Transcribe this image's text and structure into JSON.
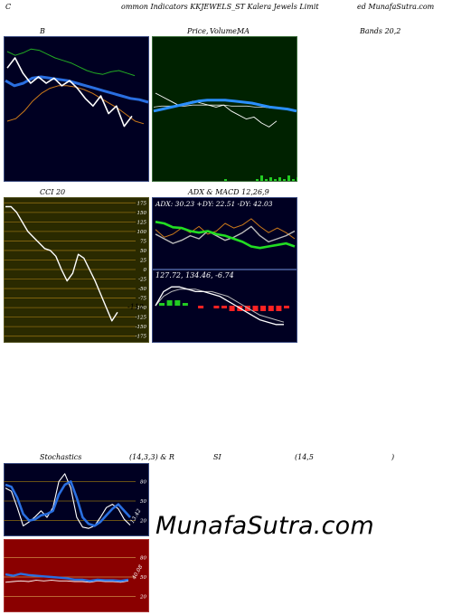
{
  "header": {
    "left": "C",
    "center": "ommon  Indicators KKJEWELS_ST Kalera  Jewels Limit",
    "right": "ed MunafaSutra.com"
  },
  "titles": {
    "bb": "B",
    "price": "Price,",
    "volume": "Volume,",
    "ma": "MA",
    "bands": "Bands 20,2",
    "cci": "CCI 20",
    "adx": "ADX  & MACD 12,26,9",
    "stoch": "Stochastics",
    "stoch_params": "(14,3,3) & R",
    "rsi": "SI",
    "rsi_params": "(14,5",
    "rsi_close": ")"
  },
  "adx_text": "ADX: 30.23  +DY: 22.51 -DY: 42.03",
  "macd_text": "127.72,   134.46,   -6.74",
  "cci_current": "-112",
  "stoch_current": "13.42",
  "rsi_current": "40.08",
  "watermark": "MunafaSutra.com",
  "chart_data": [
    {
      "type": "line",
      "panel": "bollinger",
      "series": [
        {
          "role": "upper-band",
          "values": [
            95,
            92,
            94,
            97,
            96,
            93,
            90,
            88,
            86,
            83,
            80,
            78,
            77,
            79,
            80,
            78,
            76
          ]
        },
        {
          "role": "middle-band",
          "values": [
            72,
            68,
            70,
            74,
            75,
            74,
            73,
            72,
            70,
            68,
            66,
            64,
            62,
            60,
            58,
            57,
            55
          ]
        },
        {
          "role": "moving-average",
          "values": [
            40,
            42,
            48,
            56,
            62,
            66,
            68,
            68,
            67,
            65,
            62,
            58,
            54,
            50,
            45,
            40,
            38
          ]
        },
        {
          "role": "price",
          "values": [
            82,
            90,
            78,
            70,
            75,
            70,
            74,
            68,
            72,
            66,
            58,
            52,
            60,
            46,
            52,
            36,
            44
          ]
        }
      ]
    },
    {
      "type": "line",
      "panel": "price-volume-ma",
      "series": [
        {
          "role": "price",
          "values": [
            70,
            66,
            62,
            58,
            60,
            62,
            60,
            58,
            56,
            58,
            52,
            48,
            44,
            46,
            40,
            36,
            42
          ]
        },
        {
          "role": "moving-average",
          "values": [
            52,
            54,
            56,
            58,
            60,
            62,
            63,
            63,
            63,
            62,
            61,
            60,
            58,
            56,
            55,
            54,
            52
          ]
        },
        {
          "role": "moving-average-2",
          "values": [
            56,
            57,
            57,
            57,
            57,
            58,
            58,
            58,
            58,
            58,
            57,
            57,
            57,
            56,
            56,
            55,
            55
          ]
        }
      ],
      "volume": [
        1,
        0,
        0,
        0,
        0,
        0,
        0,
        1,
        3,
        1,
        2,
        1,
        2,
        1,
        3,
        1,
        2
      ]
    },
    {
      "type": "line",
      "panel": "cci",
      "y_ticks": [
        175,
        150,
        125,
        100,
        75,
        50,
        25,
        0,
        -25,
        -50,
        -75,
        -100,
        -125,
        -150,
        -175
      ],
      "ylim": [
        -190,
        190
      ],
      "values": [
        165,
        165,
        150,
        125,
        100,
        85,
        70,
        55,
        50,
        35,
        0,
        -30,
        -10,
        40,
        30,
        0,
        -30,
        -65,
        -100,
        -135,
        -112
      ]
    },
    {
      "type": "line",
      "panel": "adx",
      "series": [
        {
          "role": "adx",
          "values": [
            62,
            60,
            55,
            54,
            50,
            48,
            50,
            46,
            44,
            40,
            36,
            30,
            28,
            30,
            32,
            34,
            30
          ]
        },
        {
          "role": "plus-di",
          "values": [
            46,
            40,
            34,
            38,
            44,
            40,
            50,
            44,
            38,
            42,
            48,
            56,
            44,
            36,
            40,
            44,
            50
          ]
        },
        {
          "role": "minus-di",
          "values": [
            52,
            42,
            46,
            54,
            48,
            56,
            46,
            50,
            60,
            54,
            58,
            66,
            56,
            48,
            54,
            48,
            40
          ]
        }
      ]
    },
    {
      "type": "line",
      "panel": "macd",
      "series": [
        {
          "role": "macd",
          "values": [
            0,
            6,
            8,
            8,
            7,
            6,
            6,
            5,
            4,
            2,
            0,
            -2,
            -4,
            -6,
            -7,
            -8,
            -8
          ]
        },
        {
          "role": "signal",
          "values": [
            0,
            4,
            6,
            7,
            7,
            7,
            6,
            6,
            5,
            4,
            2,
            0,
            -2,
            -4,
            -5,
            -6,
            -7
          ]
        }
      ],
      "histogram": [
        1,
        2,
        2,
        1,
        0,
        -1,
        0,
        -1,
        -1,
        -2,
        -2,
        -2,
        -2,
        -2,
        -2,
        -2,
        -1
      ]
    },
    {
      "type": "line",
      "panel": "stochastics",
      "y_ticks": [
        80,
        50,
        20
      ],
      "ylim": [
        0,
        100
      ],
      "series": [
        {
          "role": "fast",
          "values": [
            70,
            65,
            40,
            12,
            18,
            26,
            35,
            25,
            40,
            80,
            92,
            70,
            25,
            10,
            8,
            12,
            25,
            40,
            45,
            38,
            22,
            13
          ]
        },
        {
          "role": "slow",
          "values": [
            75,
            72,
            55,
            30,
            20,
            22,
            28,
            30,
            35,
            60,
            75,
            80,
            55,
            25,
            15,
            12,
            18,
            28,
            38,
            45,
            35,
            25
          ]
        }
      ]
    },
    {
      "type": "line",
      "panel": "rsi",
      "y_ticks": [
        80,
        50,
        20
      ],
      "ylim": [
        0,
        100
      ],
      "series": [
        {
          "role": "rsi-smoothed",
          "values": [
            54,
            52,
            55,
            53,
            52,
            51,
            50,
            49,
            48,
            46,
            46,
            44,
            46,
            45,
            45,
            44,
            46
          ]
        },
        {
          "role": "rsi",
          "values": [
            42,
            43,
            44,
            43,
            45,
            44,
            45,
            44,
            44,
            43,
            43,
            42,
            44,
            43,
            43,
            42,
            44
          ]
        }
      ]
    }
  ]
}
